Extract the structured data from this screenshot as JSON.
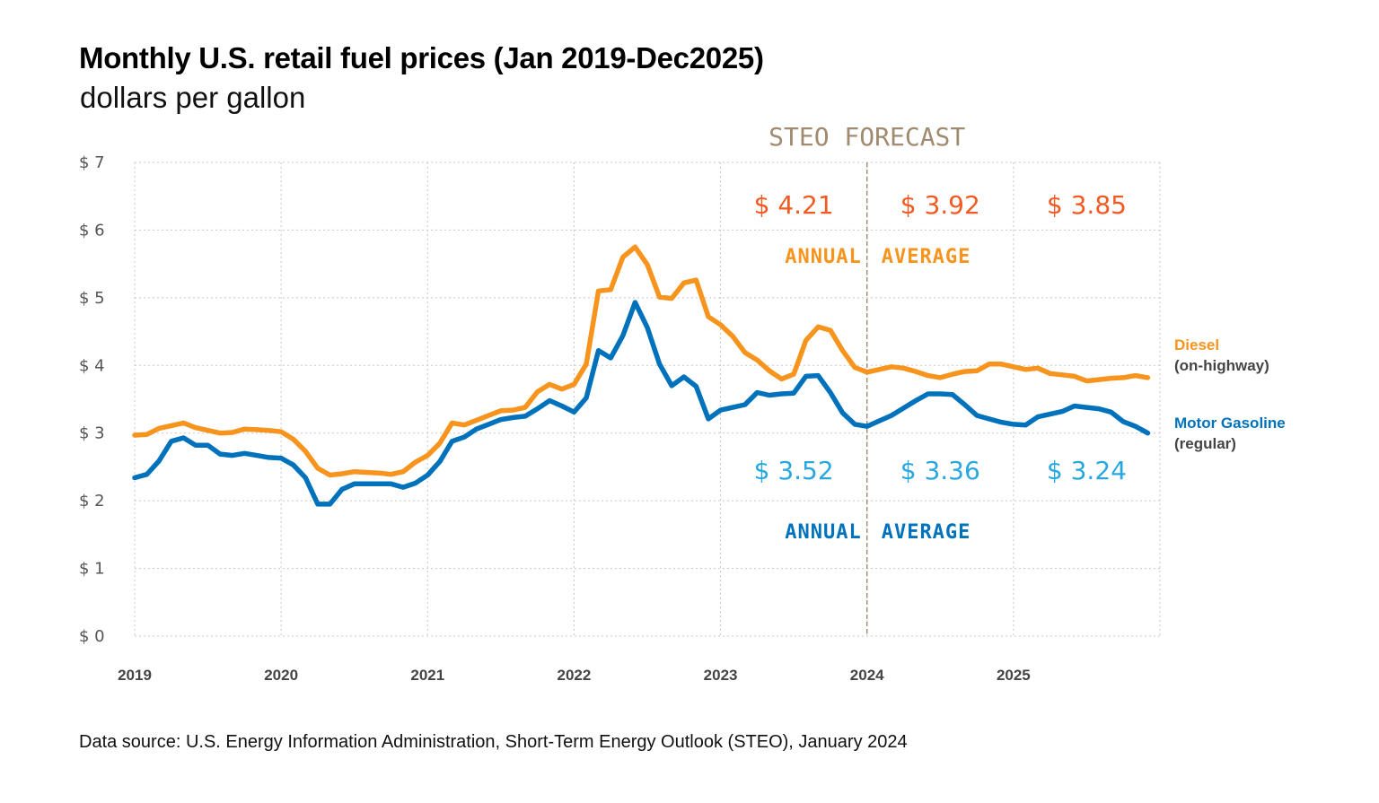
{
  "title": "Monthly U.S. retail fuel prices (Jan 2019-Dec2025)",
  "subtitle": "dollars per gallon",
  "source": "Data source: U.S. Energy Information Administration, Short-Term Energy Outlook (STEO), January 2024",
  "forecast_label": "STEO FORECAST",
  "annual_average_label_left": "ANNUAL",
  "annual_average_label_right": "AVERAGE",
  "colors": {
    "diesel": "#f7941d",
    "gasoline": "#0072bc",
    "diesel_avg": "#f15a22",
    "gasoline_avg": "#29a8e0",
    "forecast": "#a08a70",
    "grid": "#c8c8c8"
  },
  "chart_data": {
    "type": "line",
    "x_start": "2019-01",
    "x_end": "2025-12",
    "x_ticks": [
      "2019",
      "2020",
      "2021",
      "2022",
      "2023",
      "2024",
      "2025"
    ],
    "y_ticks": [
      "$ 0",
      "$ 1",
      "$ 2",
      "$ 3",
      "$ 4",
      "$ 5",
      "$ 6",
      "$ 7"
    ],
    "ylim": [
      0,
      7
    ],
    "grid": true,
    "forecast_start": "2024-01",
    "series": [
      {
        "name": "Diesel",
        "name_sub": "(on-highway)",
        "values": [
          2.97,
          2.98,
          3.07,
          3.11,
          3.15,
          3.08,
          3.04,
          3.0,
          3.01,
          3.06,
          3.05,
          3.04,
          3.02,
          2.91,
          2.73,
          2.48,
          2.38,
          2.4,
          2.43,
          2.42,
          2.41,
          2.39,
          2.43,
          2.57,
          2.67,
          2.85,
          3.15,
          3.12,
          3.19,
          3.26,
          3.33,
          3.34,
          3.38,
          3.61,
          3.72,
          3.65,
          3.72,
          4.02,
          5.1,
          5.12,
          5.6,
          5.75,
          5.49,
          5.01,
          4.99,
          5.22,
          5.26,
          4.72,
          4.6,
          4.43,
          4.19,
          4.08,
          3.92,
          3.8,
          3.87,
          4.37,
          4.57,
          4.52,
          4.22,
          3.97,
          3.9,
          3.94,
          3.98,
          3.96,
          3.91,
          3.85,
          3.82,
          3.87,
          3.91,
          3.92,
          4.02,
          4.02,
          3.98,
          3.94,
          3.96,
          3.88,
          3.86,
          3.84,
          3.77,
          3.79,
          3.81,
          3.82,
          3.85,
          3.82
        ]
      },
      {
        "name": "Motor Gasoline",
        "name_sub": "(regular)",
        "values": [
          2.34,
          2.39,
          2.59,
          2.88,
          2.93,
          2.82,
          2.82,
          2.69,
          2.67,
          2.7,
          2.67,
          2.64,
          2.63,
          2.53,
          2.34,
          1.95,
          1.95,
          2.17,
          2.25,
          2.25,
          2.25,
          2.25,
          2.2,
          2.26,
          2.38,
          2.58,
          2.88,
          2.94,
          3.06,
          3.13,
          3.2,
          3.23,
          3.25,
          3.36,
          3.48,
          3.4,
          3.31,
          3.52,
          4.22,
          4.11,
          4.44,
          4.93,
          4.56,
          4.02,
          3.7,
          3.83,
          3.69,
          3.21,
          3.34,
          3.38,
          3.42,
          3.6,
          3.56,
          3.58,
          3.59,
          3.84,
          3.85,
          3.6,
          3.3,
          3.13,
          3.1,
          3.18,
          3.26,
          3.37,
          3.48,
          3.58,
          3.58,
          3.57,
          3.42,
          3.26,
          3.21,
          3.16,
          3.13,
          3.12,
          3.24,
          3.28,
          3.32,
          3.4,
          3.38,
          3.36,
          3.31,
          3.17,
          3.1,
          3.0
        ]
      }
    ],
    "annual_averages": {
      "years": [
        "2023",
        "2024",
        "2025"
      ],
      "diesel": [
        "$ 4.21",
        "$ 3.92",
        "$ 3.85"
      ],
      "gasoline": [
        "$ 3.52",
        "$ 3.36",
        "$ 3.24"
      ]
    }
  }
}
